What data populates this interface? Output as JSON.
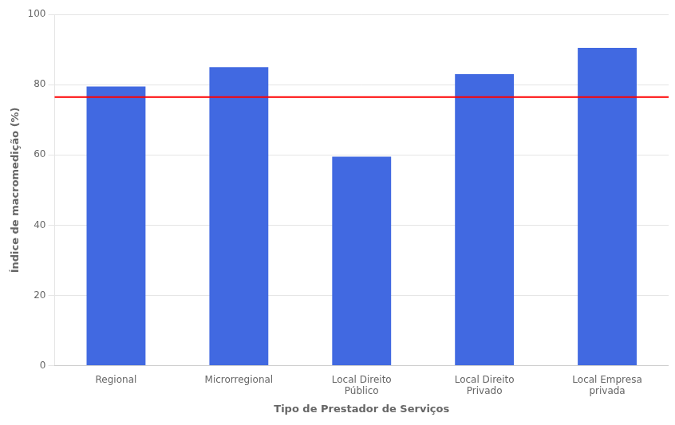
{
  "chart_data": {
    "type": "bar",
    "categories": [
      "Regional",
      "Microrregional",
      "Local Direito\nPúblico",
      "Local Direito\nPrivado",
      "Local Empresa\nprivada"
    ],
    "values": [
      79.5,
      85.0,
      59.5,
      83.0,
      90.5
    ],
    "color": "#4169E1",
    "reference_line": {
      "y": 76.5,
      "color": "red"
    },
    "xlabel": "Tipo de Prestador de Serviços",
    "ylabel": "Índice de macromedição (%)",
    "ylim": [
      0,
      100
    ],
    "yticks": [
      0,
      20,
      40,
      60,
      80,
      100
    ],
    "grid": true
  }
}
